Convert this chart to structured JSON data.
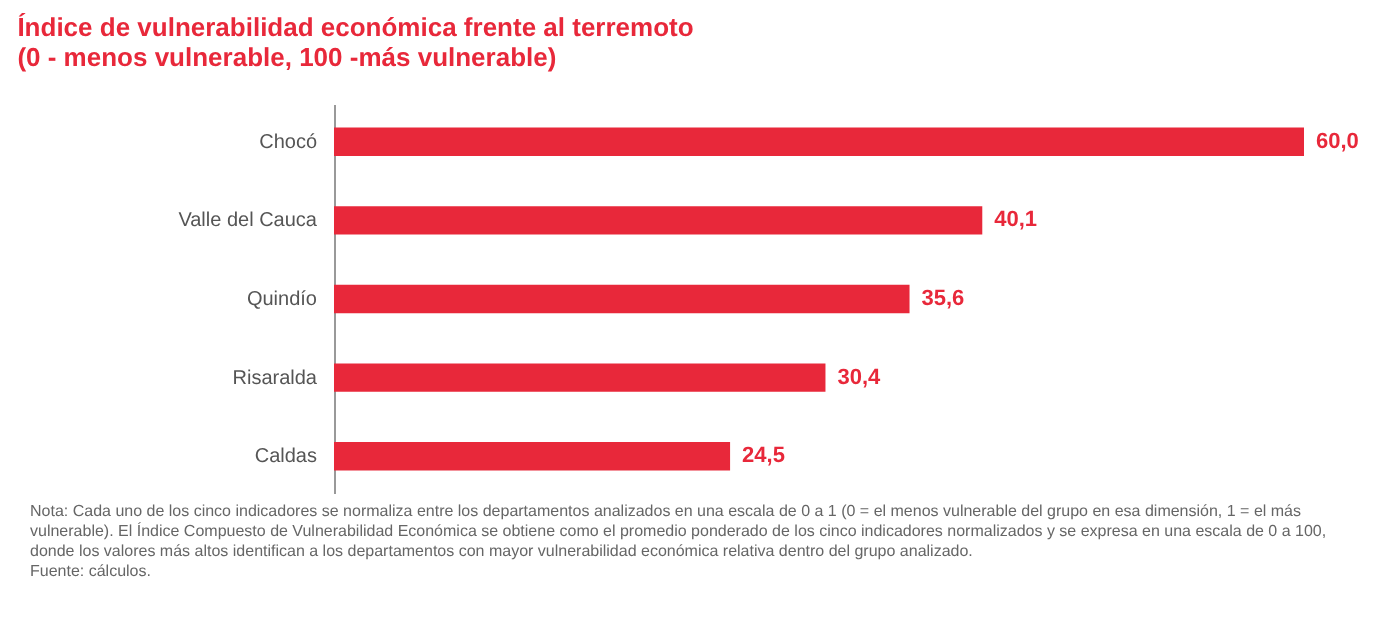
{
  "chart_data": {
    "type": "bar",
    "orientation": "horizontal",
    "title": "Índice de vulnerabilidad económica frente al terremoto",
    "subtitle": "(0 - menos vulnerable, 100 -más vulnerable)",
    "categories": [
      "Chocó",
      "Valle del Cauca",
      "Quindío",
      "Risaralda",
      "Caldas"
    ],
    "values": [
      60.0,
      40.1,
      35.6,
      30.4,
      24.5
    ],
    "value_labels": [
      "60,0",
      "40,1",
      "35,6",
      "30,4",
      "24,5"
    ],
    "color": "#e8283a",
    "annotations": [
      "Nota: Cada uno de los cinco indicadores se normaliza entre los departamentos analizados en una escala de 0 a 1 (0 = el menos vulnerable del grupo en esa dimensión, 1 = el más vulnerable). El Índice Compuesto de Vulnerabilidad Económica se obtiene como el promedio ponderado de los cinco indicadores normalizados y se expresa en una escala de 0 a 100, donde los valores más altos identifican a los departamentos con mayor vulnerabilidad económica relativa dentro del grupo analizado.",
      "Fuente: cálculos."
    ]
  }
}
